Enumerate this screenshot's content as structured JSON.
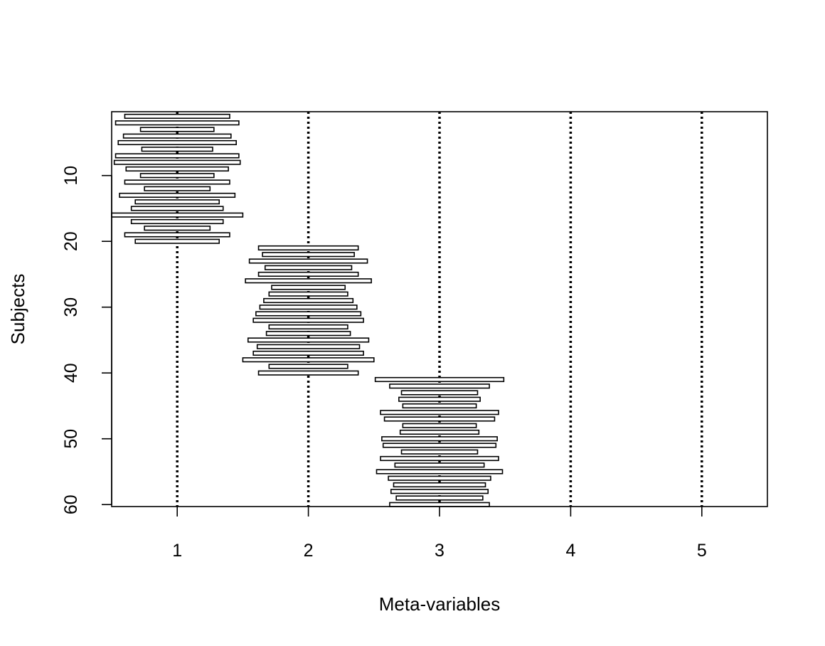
{
  "chart_data": {
    "type": "bar",
    "xlabel": "Meta-variables",
    "ylabel": "Subjects",
    "xlim": [
      0.5,
      5.5
    ],
    "ylim": [
      60.3,
      0.3
    ],
    "y_reversed": true,
    "grid": false,
    "x_ticks": [
      1,
      2,
      3,
      4,
      5
    ],
    "y_ticks": [
      10,
      20,
      30,
      40,
      50,
      60
    ],
    "reference_line_style": "dotted",
    "colors": {
      "bar_fill": "#ffffff",
      "bar_stroke": "#000000",
      "line": "#000000"
    },
    "series": [
      {
        "meta_variable": 1,
        "subjects": [
          1,
          2,
          3,
          4,
          5,
          6,
          7,
          8,
          9,
          10,
          11,
          12,
          13,
          14,
          15,
          16,
          17,
          18,
          19,
          20
        ],
        "deviation": [
          0.4,
          0.47,
          0.28,
          0.41,
          0.45,
          0.27,
          0.47,
          0.48,
          0.39,
          0.28,
          0.4,
          0.25,
          0.44,
          0.32,
          0.35,
          0.5,
          0.35,
          0.25,
          0.4,
          0.32
        ]
      },
      {
        "meta_variable": 2,
        "subjects": [
          21,
          22,
          23,
          24,
          25,
          26,
          27,
          28,
          29,
          30,
          31,
          32,
          33,
          34,
          35,
          36,
          37,
          38,
          39,
          40
        ],
        "deviation": [
          0.38,
          0.35,
          0.45,
          0.33,
          0.38,
          0.48,
          0.28,
          0.3,
          0.34,
          0.37,
          0.4,
          0.42,
          0.3,
          0.32,
          0.46,
          0.39,
          0.42,
          0.5,
          0.3,
          0.38
        ]
      },
      {
        "meta_variable": 3,
        "subjects": [
          41,
          42,
          43,
          44,
          45,
          46,
          47,
          48,
          49,
          50,
          51,
          52,
          53,
          54,
          55,
          56,
          57,
          58,
          59,
          60
        ],
        "deviation": [
          0.49,
          0.38,
          0.29,
          0.31,
          0.28,
          0.45,
          0.42,
          0.28,
          0.3,
          0.44,
          0.43,
          0.29,
          0.45,
          0.34,
          0.48,
          0.39,
          0.35,
          0.37,
          0.33,
          0.38
        ]
      }
    ]
  }
}
